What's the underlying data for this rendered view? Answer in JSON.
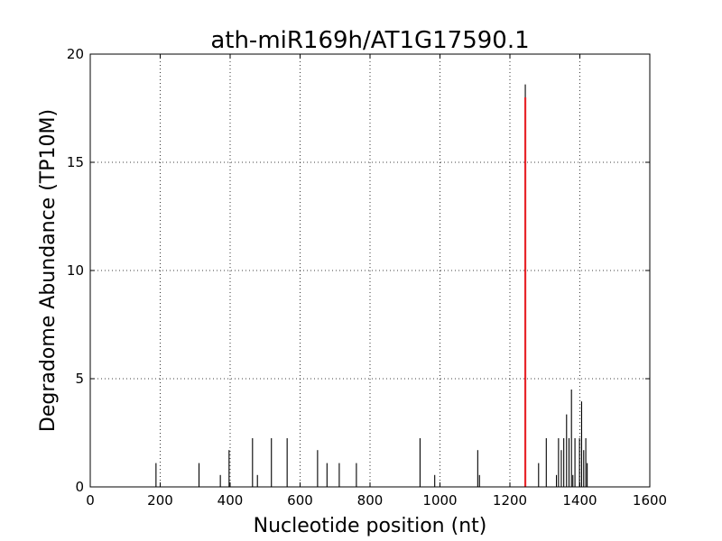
{
  "chart_data": {
    "type": "bar",
    "title": "ath-miR169h/AT1G17590.1",
    "xlabel": "Nucleotide position (nt)",
    "ylabel": "Degradome Abundance (TP10M)",
    "xlim": [
      0,
      1600
    ],
    "ylim": [
      0,
      20
    ],
    "xticks": [
      0,
      200,
      400,
      600,
      800,
      1000,
      1200,
      1400,
      1600
    ],
    "yticks": [
      0,
      5,
      10,
      15,
      20
    ],
    "grid": true,
    "grid_style": "dotted",
    "series": [
      {
        "color": "#000000",
        "points": [
          {
            "x": 188,
            "y": 1.1
          },
          {
            "x": 311,
            "y": 1.1
          },
          {
            "x": 372,
            "y": 0.55
          },
          {
            "x": 397,
            "y": 1.7
          },
          {
            "x": 464,
            "y": 2.25
          },
          {
            "x": 478,
            "y": 0.55
          },
          {
            "x": 518,
            "y": 2.25
          },
          {
            "x": 563,
            "y": 2.25
          },
          {
            "x": 650,
            "y": 1.7
          },
          {
            "x": 677,
            "y": 1.1
          },
          {
            "x": 712,
            "y": 1.1
          },
          {
            "x": 761,
            "y": 1.1
          },
          {
            "x": 943,
            "y": 2.25
          },
          {
            "x": 985,
            "y": 0.55
          },
          {
            "x": 1108,
            "y": 1.7
          },
          {
            "x": 1113,
            "y": 0.55
          },
          {
            "x": 1244,
            "y": 18.6
          },
          {
            "x": 1282,
            "y": 1.1
          },
          {
            "x": 1304,
            "y": 2.25
          },
          {
            "x": 1333,
            "y": 0.55
          },
          {
            "x": 1339,
            "y": 2.25
          },
          {
            "x": 1347,
            "y": 1.7
          },
          {
            "x": 1354,
            "y": 2.25
          },
          {
            "x": 1362,
            "y": 3.35
          },
          {
            "x": 1369,
            "y": 2.25
          },
          {
            "x": 1376,
            "y": 4.5
          },
          {
            "x": 1380,
            "y": 0.55
          },
          {
            "x": 1386,
            "y": 2.25
          },
          {
            "x": 1399,
            "y": 2.25
          },
          {
            "x": 1405,
            "y": 3.95
          },
          {
            "x": 1411,
            "y": 1.7
          },
          {
            "x": 1417,
            "y": 2.25
          },
          {
            "x": 1421,
            "y": 1.1
          }
        ]
      },
      {
        "color": "#e8262b",
        "points": [
          {
            "x": 1244,
            "y": 18.0
          }
        ]
      }
    ]
  }
}
